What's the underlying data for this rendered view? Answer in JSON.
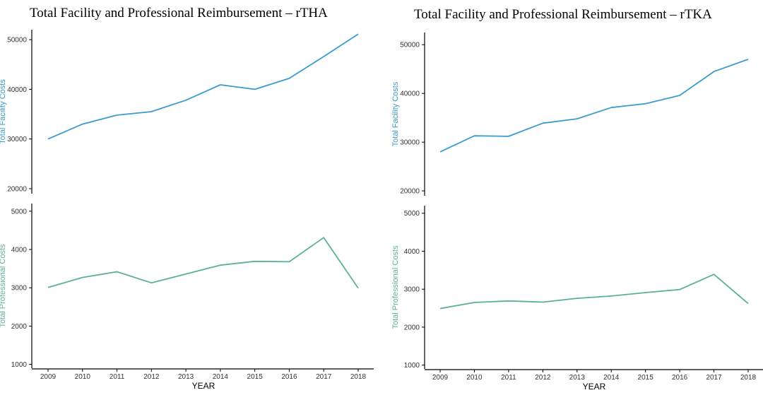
{
  "charts": {
    "colors": {
      "facility": "#3a9bd1",
      "professional": "#5bb09a"
    },
    "chart_data": [
      {
        "type": "line",
        "title": "Total Facility and Professional Reimbursement – rTHA",
        "xlabel": "YEAR",
        "x": [
          "2009",
          "2010",
          "2011",
          "2012",
          "2013",
          "2014",
          "2015",
          "2016",
          "2017",
          "2018"
        ],
        "facility": {
          "ylabel": "Total Facility Costs",
          "ylim": [
            19000,
            52000
          ],
          "yticks": [
            "20000",
            "30000",
            "40000",
            "50000"
          ],
          "values": [
            30000,
            33000,
            34800,
            35500,
            37800,
            40900,
            40000,
            42200,
            46600,
            51100
          ]
        },
        "professional": {
          "ylabel": "Total Professional Costs",
          "ylim": [
            900,
            5200
          ],
          "yticks": [
            "1000",
            "2000",
            "3000",
            "4000",
            "5000"
          ],
          "values": [
            3010,
            3270,
            3420,
            3130,
            3360,
            3590,
            3690,
            3680,
            4310,
            2990
          ]
        }
      },
      {
        "type": "line",
        "title": "Total Facility and Professional Reimbursement – rTKA",
        "xlabel": "YEAR",
        "x": [
          "2009",
          "2010",
          "2011",
          "2012",
          "2013",
          "2014",
          "2015",
          "2016",
          "2017",
          "2018"
        ],
        "facility": {
          "ylabel": "Total Facility Costs",
          "ylim": [
            19000,
            52500
          ],
          "yticks": [
            "20000",
            "30000",
            "40000",
            "50000"
          ],
          "values": [
            28000,
            31300,
            31200,
            33900,
            34800,
            37100,
            37900,
            39600,
            44500,
            47000
          ]
        },
        "professional": {
          "ylabel": "Total Professional Costs",
          "ylim": [
            900,
            5200
          ],
          "yticks": [
            "1000",
            "2000",
            "3000",
            "4000",
            "5000"
          ],
          "values": [
            2490,
            2650,
            2690,
            2660,
            2760,
            2820,
            2910,
            2990,
            3390,
            2620
          ]
        }
      }
    ]
  }
}
